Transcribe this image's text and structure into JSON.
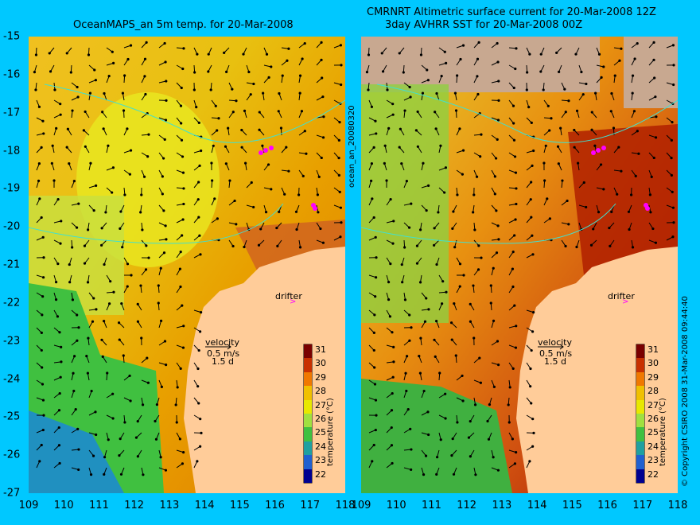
{
  "left_title": "OceanMAPS_an 5m temp. for 20-Mar-2008",
  "right_title_line1": "CMRNRT Altimetric surface current for 20-Mar-2008 12Z",
  "right_title_line2": "3day AVHRR SST for 20-Mar-2008 00Z",
  "x_ticks": [
    "109",
    "110",
    "111",
    "112",
    "113",
    "114",
    "115",
    "116",
    "117",
    "118"
  ],
  "y_ticks": [
    "-15",
    "-16",
    "-17",
    "-18",
    "-19",
    "-20",
    "-21",
    "-22",
    "-23",
    "-24",
    "-25",
    "-26",
    "-27"
  ],
  "legend": {
    "velocity_label": "velocity",
    "velocity_scale": "0.5 m/s",
    "velocity_days": "1.5 d",
    "drifter_label": "drifter"
  },
  "colorbar": {
    "label": "temperature (°C)",
    "ticks": [
      "31",
      "30",
      "29",
      "28",
      "27",
      "26",
      "25",
      "24",
      "23",
      "22"
    ],
    "colors": [
      "#7a0000",
      "#c83000",
      "#f07800",
      "#f0c000",
      "#e8e800",
      "#a0e040",
      "#40c040",
      "#20a0a0",
      "#2060d0",
      "#000090"
    ]
  },
  "side_labels": {
    "middle": "ocean_an_20080320",
    "right": "© Copyright CSIRO 2008   31-Mar-2008 09:44:40"
  },
  "colors": {
    "background": "#00c8ff",
    "land": "#ffcc99",
    "bathymetry": "#40e0d0",
    "drifter": "#ff00ff"
  }
}
